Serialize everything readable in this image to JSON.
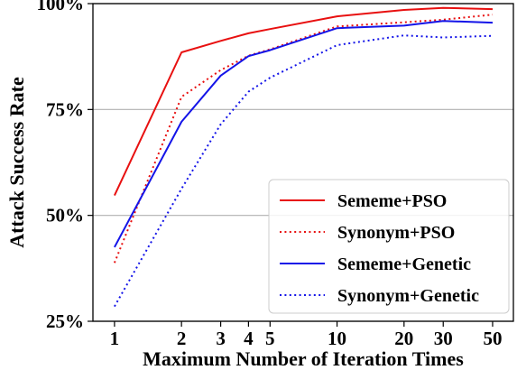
{
  "chart_data": {
    "type": "line",
    "x_scale": "log",
    "xlabel": "Maximum Number of Iteration Times",
    "ylabel": "Attack Success Rate",
    "x_ticks": [
      1,
      2,
      3,
      4,
      5,
      10,
      20,
      30,
      50
    ],
    "x_tick_labels": [
      "1",
      "2",
      "3",
      "4",
      "5",
      "10",
      "20",
      "30",
      "50"
    ],
    "y_ticks": [
      25,
      50,
      75,
      100
    ],
    "y_tick_labels": [
      "25%",
      "50%",
      "75%",
      "100%"
    ],
    "xlim": [
      0.8,
      62
    ],
    "ylim": [
      25,
      100
    ],
    "grid": "horizontal",
    "legend_position": "lower-right",
    "series": [
      {
        "name": "Sememe+PSO",
        "color": "#e81010",
        "style": "solid",
        "x": [
          1,
          2,
          3,
          4,
          5,
          10,
          20,
          30,
          50
        ],
        "y": [
          54.7,
          88.5,
          91.2,
          93.0,
          94.0,
          97.0,
          98.5,
          99.0,
          98.7
        ]
      },
      {
        "name": "Synonym+PSO",
        "color": "#e81010",
        "style": "dotted",
        "x": [
          1,
          2,
          3,
          4,
          5,
          10,
          20,
          30,
          50
        ],
        "y": [
          38.8,
          78.0,
          84.3,
          87.7,
          89.2,
          94.6,
          95.6,
          96.2,
          97.4
        ]
      },
      {
        "name": "Sememe+Genetic",
        "color": "#1414e8",
        "style": "solid",
        "x": [
          1,
          2,
          3,
          4,
          5,
          10,
          20,
          30,
          50
        ],
        "y": [
          42.5,
          72.1,
          83.0,
          87.6,
          89.0,
          94.2,
          94.8,
          95.9,
          95.5
        ]
      },
      {
        "name": "Synonym+Genetic",
        "color": "#1414e8",
        "style": "dotted",
        "x": [
          1,
          2,
          3,
          4,
          5,
          10,
          20,
          30,
          50
        ],
        "y": [
          28.5,
          56.3,
          71.5,
          79.2,
          82.5,
          90.2,
          92.5,
          92.0,
          92.4
        ]
      }
    ]
  }
}
